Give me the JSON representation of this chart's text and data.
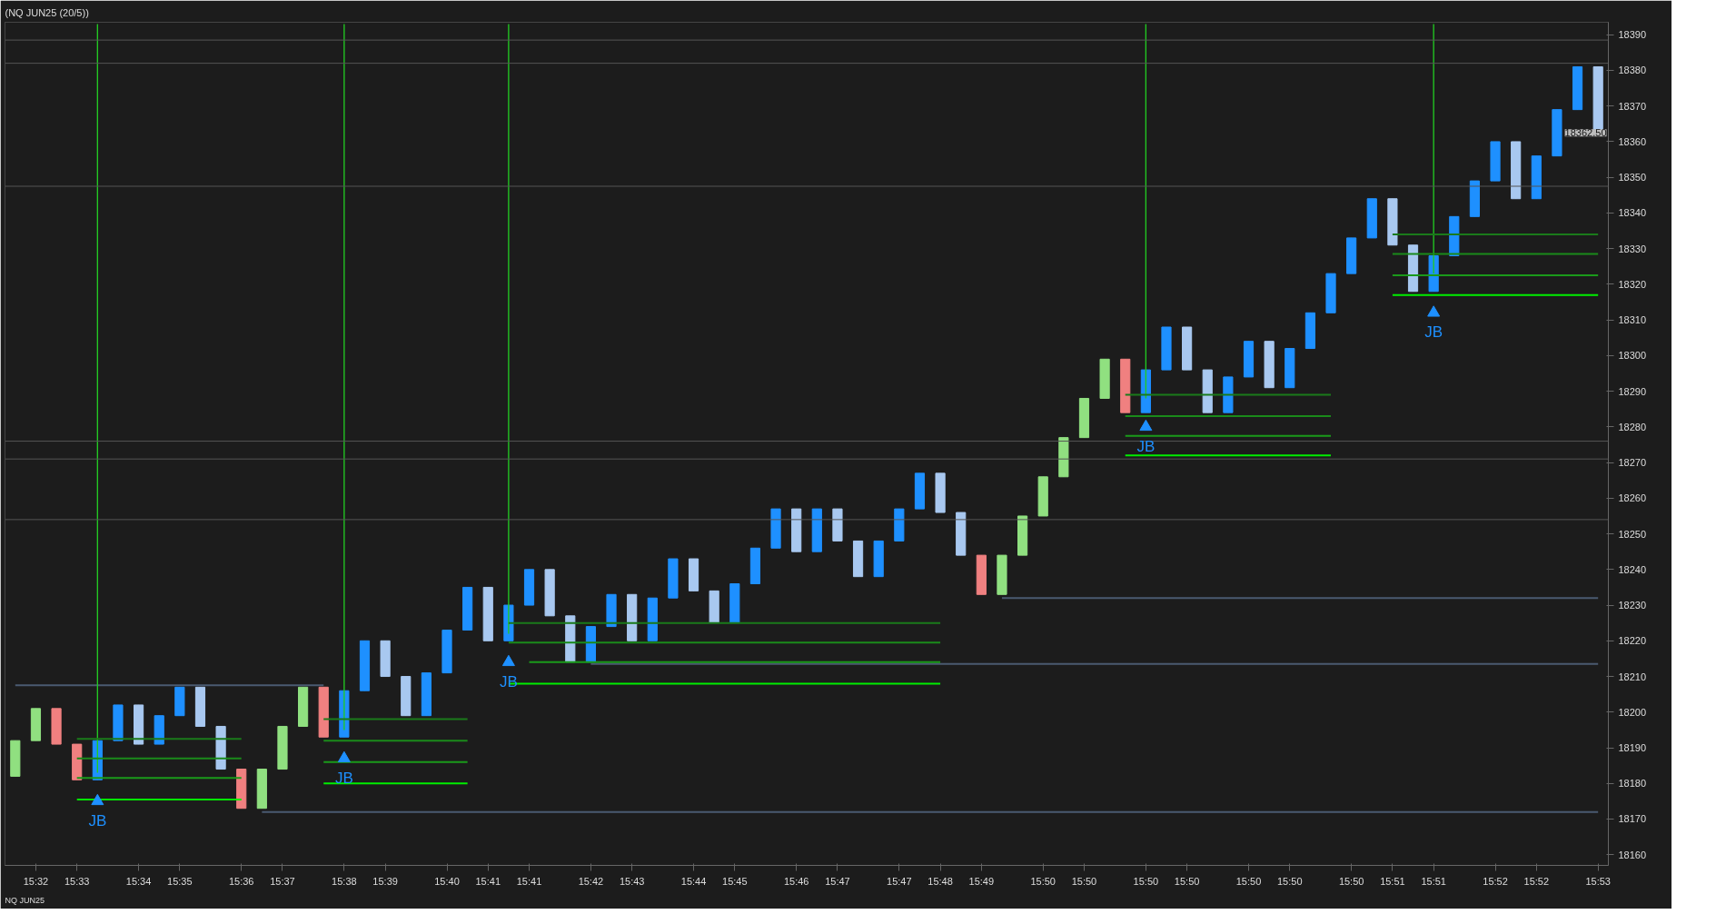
{
  "chart_data": {
    "type": "candlestick",
    "title": "(NQ JUN25 (20/5))",
    "categories": [
      null,
      "15:32",
      null,
      "15:33",
      null,
      null,
      "15:34",
      null,
      "15:35",
      null,
      null,
      "15:36",
      null,
      "15:37",
      null,
      null,
      "15:38",
      null,
      "15:39",
      null,
      null,
      "15:40",
      null,
      "15:41",
      null,
      "15:41",
      null,
      null,
      "15:42",
      null,
      "15:43",
      null,
      null,
      "15:44",
      null,
      "15:45",
      null,
      null,
      "15:46",
      null,
      "15:47",
      null,
      null,
      "15:47",
      null,
      "15:48",
      null,
      "15:49",
      null,
      null,
      "15:50",
      null,
      "15:50",
      null,
      null,
      "15:50",
      null,
      "15:50",
      null,
      null,
      "15:50",
      null,
      "15:50",
      null,
      null,
      "15:50",
      null,
      "15:51",
      null,
      "15:51",
      null,
      null,
      "15:52",
      null,
      "15:52",
      null,
      null,
      "15:53"
    ],
    "ohlc": [
      [
        18182,
        18192,
        18182,
        18192
      ],
      [
        18192,
        18201,
        18192,
        18201
      ],
      [
        18201,
        18201,
        18191,
        18191
      ],
      [
        18191,
        18191,
        18181,
        18181
      ],
      [
        18181,
        18192,
        18181,
        18192
      ],
      [
        18192,
        18202,
        18192,
        18202
      ],
      [
        18202,
        18202,
        18191,
        18191
      ],
      [
        18191,
        18199,
        18191,
        18199
      ],
      [
        18199,
        18207,
        18199,
        18207
      ],
      [
        18207,
        18207,
        18196,
        18196
      ],
      [
        18196,
        18196,
        18184,
        18184
      ],
      [
        18184,
        18184,
        18173,
        18173
      ],
      [
        18173,
        18184,
        18173,
        18184
      ],
      [
        18184,
        18196,
        18184,
        18196
      ],
      [
        18196,
        18207,
        18196,
        18207
      ],
      [
        18207,
        18207,
        18193,
        18193
      ],
      [
        18193,
        18206,
        18193,
        18206
      ],
      [
        18206,
        18220,
        18206,
        18220
      ],
      [
        18220,
        18220,
        18210,
        18210
      ],
      [
        18210,
        18210,
        18199,
        18199
      ],
      [
        18199,
        18211,
        18199,
        18211
      ],
      [
        18211,
        18223,
        18211,
        18223
      ],
      [
        18223,
        18235,
        18223,
        18235
      ],
      [
        18235,
        18235,
        18220,
        18220
      ],
      [
        18220,
        18230,
        18220,
        18230
      ],
      [
        18230,
        18240,
        18230,
        18240
      ],
      [
        18240,
        18240,
        18227,
        18227
      ],
      [
        18227,
        18227,
        18214,
        18214
      ],
      [
        18214,
        18224,
        18214,
        18224
      ],
      [
        18224,
        18233,
        18224,
        18233
      ],
      [
        18233,
        18233,
        18220,
        18220
      ],
      [
        18220,
        18232,
        18220,
        18232
      ],
      [
        18232,
        18243,
        18232,
        18243
      ],
      [
        18243,
        18243,
        18234,
        18234
      ],
      [
        18234,
        18234,
        18225,
        18225
      ],
      [
        18225,
        18236,
        18225,
        18236
      ],
      [
        18236,
        18246,
        18236,
        18246
      ],
      [
        18246,
        18257,
        18246,
        18257
      ],
      [
        18257,
        18257,
        18245,
        18245
      ],
      [
        18245,
        18257,
        18245,
        18257
      ],
      [
        18257,
        18257,
        18248,
        18248
      ],
      [
        18248,
        18248,
        18238,
        18238
      ],
      [
        18238,
        18248,
        18238,
        18248
      ],
      [
        18248,
        18257,
        18248,
        18257
      ],
      [
        18257,
        18267,
        18257,
        18267
      ],
      [
        18267,
        18267,
        18256,
        18256
      ],
      [
        18256,
        18256,
        18244,
        18244
      ],
      [
        18244,
        18244,
        18233,
        18233
      ],
      [
        18233,
        18244,
        18233,
        18244
      ],
      [
        18244,
        18255,
        18244,
        18255
      ],
      [
        18255,
        18266,
        18255,
        18266
      ],
      [
        18266,
        18277,
        18266,
        18277
      ],
      [
        18277,
        18288,
        18277,
        18288
      ],
      [
        18288,
        18299,
        18288,
        18299
      ],
      [
        18299,
        18299,
        18284,
        18284
      ],
      [
        18284,
        18296,
        18284,
        18296
      ],
      [
        18296,
        18308,
        18296,
        18308
      ],
      [
        18308,
        18308,
        18296,
        18296
      ],
      [
        18296,
        18296,
        18284,
        18284
      ],
      [
        18284,
        18294,
        18284,
        18294
      ],
      [
        18294,
        18304,
        18294,
        18304
      ],
      [
        18304,
        18304,
        18291,
        18291
      ],
      [
        18291,
        18302,
        18291,
        18302
      ],
      [
        18302,
        18312,
        18302,
        18312
      ],
      [
        18312,
        18323,
        18312,
        18323
      ],
      [
        18323,
        18333,
        18323,
        18333
      ],
      [
        18333,
        18344,
        18333,
        18344
      ],
      [
        18344,
        18344,
        18331,
        18331
      ],
      [
        18331,
        18331,
        18318,
        18318
      ],
      [
        18318,
        18328,
        18318,
        18328
      ],
      [
        18328,
        18339,
        18328,
        18339
      ],
      [
        18339,
        18349,
        18339,
        18349
      ],
      [
        18349,
        18360,
        18349,
        18360
      ],
      [
        18360,
        18360,
        18344,
        18344
      ],
      [
        18344,
        18356,
        18344,
        18356
      ],
      [
        18356,
        18369,
        18356,
        18369
      ],
      [
        18369,
        18381,
        18369,
        18381
      ],
      [
        18381,
        18381,
        18362.5,
        18362.5
      ]
    ],
    "colors": [
      "#90e080",
      "#90e080",
      "#f08080",
      "#f08080",
      "#1e90ff",
      "#1e90ff",
      "#a8c8f0",
      "#1e90ff",
      "#1e90ff",
      "#a8c8f0",
      "#a8c8f0",
      "#f08080",
      "#90e080",
      "#90e080",
      "#90e080",
      "#f08080",
      "#1e90ff",
      "#1e90ff",
      "#a8c8f0",
      "#a8c8f0",
      "#1e90ff",
      "#1e90ff",
      "#1e90ff",
      "#a8c8f0",
      "#1e90ff",
      "#1e90ff",
      "#a8c8f0",
      "#a8c8f0",
      "#1e90ff",
      "#1e90ff",
      "#a8c8f0",
      "#1e90ff",
      "#1e90ff",
      "#a8c8f0",
      "#a8c8f0",
      "#1e90ff",
      "#1e90ff",
      "#1e90ff",
      "#a8c8f0",
      "#1e90ff",
      "#a8c8f0",
      "#a8c8f0",
      "#1e90ff",
      "#1e90ff",
      "#1e90ff",
      "#a8c8f0",
      "#a8c8f0",
      "#f08080",
      "#90e080",
      "#90e080",
      "#90e080",
      "#90e080",
      "#90e080",
      "#90e080",
      "#f08080",
      "#1e90ff",
      "#1e90ff",
      "#a8c8f0",
      "#a8c8f0",
      "#1e90ff",
      "#1e90ff",
      "#a8c8f0",
      "#1e90ff",
      "#1e90ff",
      "#1e90ff",
      "#1e90ff",
      "#1e90ff",
      "#a8c8f0",
      "#a8c8f0",
      "#1e90ff",
      "#1e90ff",
      "#1e90ff",
      "#1e90ff",
      "#a8c8f0",
      "#1e90ff",
      "#1e90ff",
      "#1e90ff",
      "#a8c8f0"
    ],
    "series": [
      {
        "type": "line",
        "color": "#4a5a70",
        "values": [
          18207.5,
          18207.5,
          18207.5,
          18207.5,
          18207.5,
          18207.5,
          18207.5,
          18207.5,
          18207.5,
          18207.5,
          18207.5,
          18207.5,
          18207.5,
          18207.5,
          18207.5,
          18207.5,
          null,
          null,
          null,
          null,
          null,
          null,
          null,
          null,
          null,
          null,
          null,
          null,
          null,
          null,
          null,
          null,
          null,
          null,
          null,
          null,
          null,
          null,
          null,
          null,
          null,
          null,
          null,
          null,
          null,
          null,
          null,
          null,
          18232,
          18232,
          18232,
          18232,
          18232,
          18232,
          18232,
          18232,
          18232,
          18232,
          18232,
          18232,
          18232,
          18232,
          18232,
          18232,
          18232,
          18232,
          18232,
          18232,
          18232,
          18232,
          18232,
          18232,
          18232,
          18232,
          18232,
          18232,
          18232,
          18232
        ]
      },
      {
        "type": "line",
        "color": "#4a5a70",
        "values": [
          null,
          null,
          null,
          null,
          null,
          null,
          null,
          null,
          null,
          null,
          null,
          null,
          null,
          null,
          null,
          null,
          null,
          null,
          null,
          null,
          null,
          null,
          null,
          null,
          null,
          null,
          null,
          null,
          18213.5,
          18213.5,
          18213.5,
          18213.5,
          18213.5,
          18213.5,
          18213.5,
          18213.5,
          18213.5,
          18213.5,
          18213.5,
          18213.5,
          18213.5,
          18213.5,
          18213.5,
          18213.5,
          18213.5,
          18213.5,
          18213.5,
          18213.5,
          18213.5,
          18213.5,
          18213.5,
          18213.5,
          18213.5,
          18213.5,
          18213.5,
          18213.5,
          18213.5,
          18213.5,
          18213.5,
          18213.5,
          18213.5,
          18213.5,
          18213.5,
          18213.5,
          18213.5,
          18213.5,
          18213.5,
          18213.5,
          18213.5,
          18213.5,
          18213.5,
          18213.5,
          18213.5,
          18213.5,
          18213.5,
          18213.5,
          18213.5,
          18213.5
        ]
      },
      {
        "type": "line",
        "color": "#4a5a70",
        "values": [
          null,
          null,
          null,
          null,
          null,
          null,
          null,
          null,
          null,
          null,
          null,
          null,
          18172,
          18172,
          18172,
          18172,
          18172,
          18172,
          18172,
          18172,
          18172,
          18172,
          18172,
          18172,
          18172,
          18172,
          18172,
          18172,
          18172,
          18172,
          18172,
          18172,
          18172,
          18172,
          18172,
          18172,
          18172,
          18172,
          18172,
          18172,
          18172,
          18172,
          18172,
          18172,
          18172,
          18172,
          18172,
          18172,
          18172,
          18172,
          18172,
          18172,
          18172,
          18172,
          18172,
          18172,
          18172,
          18172,
          18172,
          18172,
          18172,
          18172,
          18172,
          18172,
          18172,
          18172,
          18172,
          18172,
          18172,
          18172,
          18172,
          18172,
          18172,
          18172,
          18172,
          18172,
          18172,
          18172
        ]
      },
      {
        "type": "bar",
        "color": "#22c822",
        "values": [
          null,
          null,
          null,
          null,
          210,
          null,
          null,
          null,
          null,
          null,
          null,
          null,
          null,
          null,
          null,
          null,
          198,
          null,
          null,
          null,
          null,
          null,
          null,
          null,
          171,
          null,
          null,
          null,
          null,
          null,
          null,
          null,
          null,
          null,
          null,
          null,
          null,
          null,
          null,
          null,
          null,
          null,
          null,
          null,
          null,
          null,
          null,
          null,
          null,
          null,
          null,
          null,
          null,
          null,
          null,
          105,
          null,
          null,
          null,
          null,
          null,
          null,
          null,
          null,
          null,
          null,
          null,
          null,
          null,
          70,
          null,
          null,
          null,
          null,
          null,
          null,
          null,
          null
        ],
        "base": [
          null,
          null,
          null,
          null,
          18183,
          null,
          null,
          null,
          null,
          null,
          null,
          null,
          null,
          null,
          null,
          null,
          18195,
          null,
          null,
          null,
          null,
          null,
          null,
          null,
          18222,
          null,
          null,
          null,
          null,
          null,
          null,
          null,
          null,
          null,
          null,
          null,
          null,
          null,
          null,
          null,
          null,
          null,
          null,
          null,
          null,
          null,
          null,
          null,
          null,
          null,
          null,
          null,
          null,
          null,
          null,
          18288,
          null,
          null,
          null,
          null,
          null,
          null,
          null,
          null,
          null,
          null,
          null,
          null,
          null,
          18323,
          null,
          null,
          null,
          null,
          null,
          null,
          null,
          null
        ]
      },
      {
        "type": "line",
        "color": "#1a7a1a",
        "values": [
          null,
          null,
          null,
          18192.5,
          18192.5,
          18192.5,
          18192.5,
          18192.5,
          18192.5,
          18192.5,
          18192.5,
          18192.5,
          null,
          null,
          null,
          18198,
          18198,
          18198,
          18198,
          18198,
          18198,
          18198,
          18198,
          null,
          18225,
          18225,
          18225,
          18225,
          18225,
          18225,
          18225,
          18225,
          18225,
          18225,
          18225,
          18225,
          18225,
          18225,
          18225,
          18225,
          18225,
          18225,
          18225,
          18225,
          18225,
          18225,
          null,
          null,
          null,
          null,
          null,
          null,
          null,
          null,
          18289,
          18289,
          18289,
          18289,
          18289,
          18289,
          18289,
          18289,
          18289,
          18289,
          18289,
          null,
          null,
          18334,
          18334,
          18334,
          18334,
          18334,
          18334,
          18334,
          18334,
          18334,
          18334,
          18334
        ]
      },
      {
        "type": "line",
        "color": "#1a8a1a",
        "values": [
          null,
          null,
          null,
          18187,
          18187,
          18187,
          18187,
          18187,
          18187,
          18187,
          18187,
          18187,
          null,
          null,
          null,
          18192,
          18192,
          18192,
          18192,
          18192,
          18192,
          18192,
          18192,
          null,
          18219.5,
          18219.5,
          18219.5,
          18219.5,
          18219.5,
          18219.5,
          18219.5,
          18219.5,
          18219.5,
          18219.5,
          18219.5,
          18219.5,
          18219.5,
          18219.5,
          18219.5,
          18219.5,
          18219.5,
          18219.5,
          18219.5,
          18219.5,
          18219.5,
          18219.5,
          null,
          null,
          null,
          null,
          null,
          null,
          null,
          null,
          18283,
          18283,
          18283,
          18283,
          18283,
          18283,
          18283,
          18283,
          18283,
          18283,
          18283,
          null,
          null,
          18328.5,
          18328.5,
          18328.5,
          18328.5,
          18328.5,
          18328.5,
          18328.5,
          18328.5,
          18328.5,
          18328.5,
          18328.5
        ]
      },
      {
        "type": "line",
        "color": "#1a9a1a",
        "values": [
          null,
          null,
          null,
          18181.5,
          18181.5,
          18181.5,
          18181.5,
          18181.5,
          18181.5,
          18181.5,
          18181.5,
          18181.5,
          null,
          null,
          null,
          18186,
          18186,
          18186,
          18186,
          18186,
          18186,
          18186,
          18186,
          null,
          null,
          18214,
          18214,
          18214,
          18214,
          18214,
          18214,
          18214,
          18214,
          18214,
          18214,
          18214,
          18214,
          18214,
          18214,
          18214,
          18214,
          18214,
          18214,
          18214,
          18214,
          18214,
          null,
          null,
          null,
          null,
          null,
          null,
          null,
          null,
          18277.5,
          18277.5,
          18277.5,
          18277.5,
          18277.5,
          18277.5,
          18277.5,
          18277.5,
          18277.5,
          18277.5,
          18277.5,
          null,
          null,
          18322.5,
          18322.5,
          18322.5,
          18322.5,
          18322.5,
          18322.5,
          18322.5,
          18322.5,
          18322.5,
          18322.5,
          18322.5
        ]
      },
      {
        "type": "line",
        "color": "#00ee00",
        "values": [
          null,
          null,
          null,
          18175.5,
          18175.5,
          18175.5,
          18175.5,
          18175.5,
          18175.5,
          18175.5,
          18175.5,
          18175.5,
          null,
          null,
          null,
          18180,
          18180,
          18180,
          18180,
          18180,
          18180,
          18180,
          18180,
          null,
          18208,
          18208,
          18208,
          18208,
          18208,
          18208,
          18208,
          18208,
          18208,
          18208,
          18208,
          18208,
          18208,
          18208,
          18208,
          18208,
          18208,
          18208,
          18208,
          18208,
          18208,
          18208,
          null,
          null,
          null,
          null,
          null,
          null,
          null,
          null,
          18272,
          18272,
          18272,
          18272,
          18272,
          18272,
          18272,
          18272,
          18272,
          18272,
          18272,
          null,
          null,
          18317,
          18317,
          18317,
          18317,
          18317,
          18317,
          18317,
          18317,
          18317,
          18317,
          18317
        ]
      },
      {
        "type": "scatter",
        "color": "#1e90ff",
        "marker": "triangle",
        "values": [
          null,
          null,
          null,
          null,
          18175,
          null,
          null,
          null,
          null,
          null,
          null,
          null,
          null,
          null,
          null,
          null,
          18187,
          null,
          null,
          null,
          null,
          null,
          null,
          null,
          18214,
          null,
          null,
          null,
          null,
          null,
          null,
          null,
          null,
          null,
          null,
          null,
          null,
          null,
          null,
          null,
          null,
          null,
          null,
          null,
          null,
          null,
          null,
          null,
          null,
          null,
          null,
          null,
          null,
          null,
          null,
          18280,
          null,
          null,
          null,
          null,
          null,
          null,
          null,
          null,
          null,
          null,
          null,
          null,
          null,
          18312,
          null,
          null,
          null,
          null,
          null,
          null,
          null,
          null
        ]
      }
    ],
    "ref_lines": [
      {
        "axis": "y",
        "value": 18388.5,
        "label": null,
        "color": "#555555"
      },
      {
        "axis": "y",
        "value": 18382,
        "label": null,
        "color": "#555555"
      },
      {
        "axis": "y",
        "value": 18347.5,
        "label": null,
        "color": "#555555"
      },
      {
        "axis": "y",
        "value": 18276,
        "label": null,
        "color": "#555555"
      },
      {
        "axis": "y",
        "value": 18271,
        "label": null,
        "color": "#555555"
      },
      {
        "axis": "y",
        "value": 18254,
        "label": null,
        "color": "#555555"
      }
    ],
    "annotations": [
      "JB",
      "JB",
      "JB",
      "JB",
      "JB",
      "18362.50",
      "NQ JUN25"
    ],
    "ylim": [
      18157,
      18393.5
    ],
    "yticks": [
      18160,
      18170,
      18180,
      18190,
      18200,
      18210,
      18220,
      18230,
      18240,
      18250,
      18260,
      18270,
      18280,
      18290,
      18300,
      18310,
      18320,
      18330,
      18340,
      18350,
      18360,
      18370,
      18380,
      18390
    ],
    "grid": false
  }
}
